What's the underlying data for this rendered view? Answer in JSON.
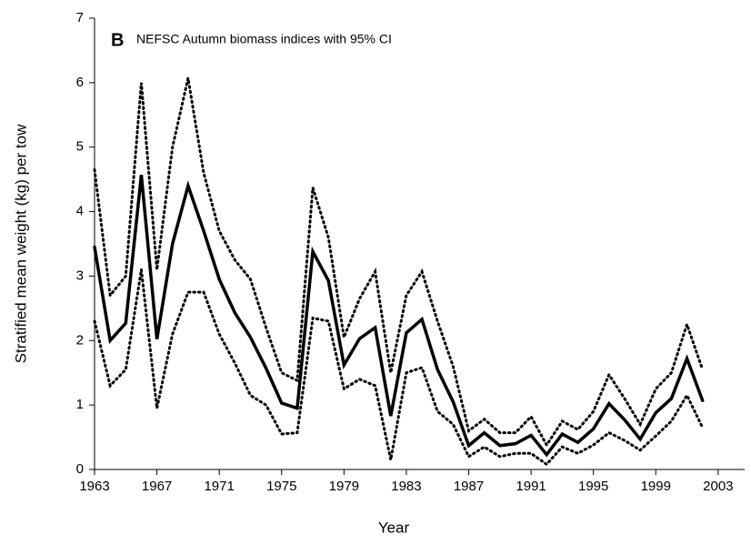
{
  "chart_data": {
    "type": "line",
    "panel_label": "B",
    "title": "NEFSC Autumn biomass indices with 95% CI",
    "x_label": "Year",
    "y_label": "Stratified mean weight (kg) per tow",
    "x": [
      1963,
      1964,
      1965,
      1966,
      1967,
      1968,
      1969,
      1970,
      1971,
      1972,
      1973,
      1974,
      1975,
      1976,
      1977,
      1978,
      1979,
      1980,
      1981,
      1982,
      1983,
      1984,
      1985,
      1986,
      1987,
      1988,
      1989,
      1990,
      1991,
      1992,
      1993,
      1994,
      1995,
      1996,
      1997,
      1998,
      1999,
      2000,
      2001,
      2002
    ],
    "series": [
      {
        "color": "#000000",
        "style": "solid",
        "values": [
          3.45,
          2.0,
          2.27,
          4.57,
          2.02,
          3.5,
          4.4,
          3.7,
          2.95,
          2.43,
          2.05,
          1.57,
          1.03,
          0.95,
          3.38,
          2.93,
          1.62,
          2.03,
          2.2,
          0.83,
          2.12,
          2.33,
          1.55,
          1.05,
          0.37,
          0.57,
          0.37,
          0.4,
          0.53,
          0.23,
          0.55,
          0.42,
          0.63,
          1.02,
          0.77,
          0.47,
          0.88,
          1.1,
          1.72,
          1.07
        ]
      },
      {
        "color": "#000000",
        "style": "dotted",
        "values": [
          4.65,
          2.7,
          3.0,
          6.0,
          3.1,
          5.0,
          6.07,
          4.6,
          3.7,
          3.25,
          2.95,
          2.2,
          1.5,
          1.38,
          4.37,
          3.6,
          2.05,
          2.65,
          3.07,
          1.5,
          2.7,
          3.07,
          2.3,
          1.6,
          0.6,
          0.78,
          0.57,
          0.57,
          0.82,
          0.38,
          0.75,
          0.62,
          0.9,
          1.47,
          1.1,
          0.7,
          1.25,
          1.5,
          2.25,
          1.55
        ]
      },
      {
        "color": "#000000",
        "style": "dotted",
        "values": [
          2.3,
          1.3,
          1.55,
          3.1,
          0.95,
          2.1,
          2.75,
          2.75,
          2.1,
          1.65,
          1.15,
          1.0,
          0.55,
          0.57,
          2.35,
          2.3,
          1.25,
          1.4,
          1.3,
          0.15,
          1.5,
          1.58,
          0.9,
          0.7,
          0.2,
          0.35,
          0.2,
          0.25,
          0.25,
          0.08,
          0.35,
          0.25,
          0.38,
          0.57,
          0.45,
          0.3,
          0.52,
          0.75,
          1.15,
          0.65
        ]
      }
    ],
    "xlim": [
      1963,
      2004.7
    ],
    "xticks": [
      1963,
      1967,
      1971,
      1975,
      1979,
      1983,
      1987,
      1991,
      1995,
      1999,
      2003
    ],
    "ylim": [
      0,
      7
    ],
    "yticks": [
      0,
      1,
      2,
      3,
      4,
      5,
      6,
      7
    ]
  }
}
